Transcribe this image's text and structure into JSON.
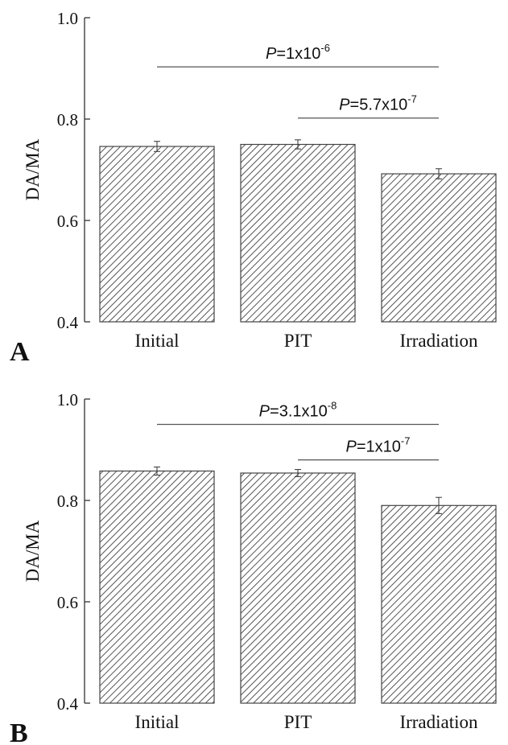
{
  "chart_data": [
    {
      "type": "bar",
      "panel_label": "A",
      "categories": [
        "Initial",
        "PIT",
        "Irradiation"
      ],
      "values": [
        0.746,
        0.75,
        0.692
      ],
      "errors": [
        0.01,
        0.009,
        0.01
      ],
      "ylabel": "DA/MA",
      "ylim": [
        0.4,
        1.0
      ],
      "yticks": [
        "0.4",
        "0.6",
        "0.8",
        "1.0"
      ],
      "annotations": [
        {
          "from": 0,
          "to": 2,
          "p_label": "P",
          "p_value": "=1x10",
          "p_exponent": "-6",
          "y": 0.903
        },
        {
          "from": 1,
          "to": 2,
          "p_label": "P",
          "p_value": "=5.7x10",
          "p_exponent": "-7",
          "y": 0.802
        }
      ],
      "pattern": "diagonal-hatch",
      "bar_fill_color": "#ffffff",
      "hatch_color": "#555555"
    },
    {
      "type": "bar",
      "panel_label": "B",
      "categories": [
        "Initial",
        "PIT",
        "Irradiation"
      ],
      "values": [
        0.858,
        0.854,
        0.79
      ],
      "errors": [
        0.008,
        0.007,
        0.016
      ],
      "ylabel": "DA/MA",
      "ylim": [
        0.4,
        1.0
      ],
      "yticks": [
        "0.4",
        "0.6",
        "0.8",
        "1.0"
      ],
      "annotations": [
        {
          "from": 0,
          "to": 2,
          "p_label": "P",
          "p_value": "=3.1x10",
          "p_exponent": "-8",
          "y": 0.95
        },
        {
          "from": 1,
          "to": 2,
          "p_label": "P",
          "p_value": "=1x10",
          "p_exponent": "-7",
          "y": 0.88
        }
      ],
      "pattern": "diagonal-hatch",
      "bar_fill_color": "#ffffff",
      "hatch_color": "#555555"
    }
  ]
}
